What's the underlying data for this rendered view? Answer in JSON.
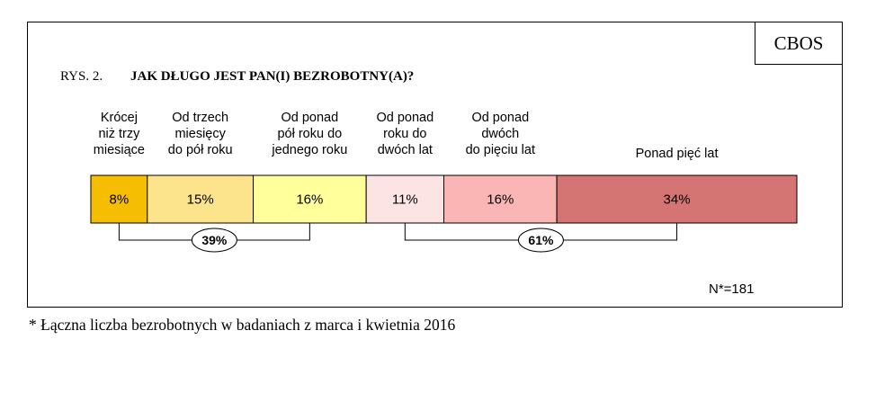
{
  "logo": "CBOS",
  "figure": {
    "label": "RYS. 2.",
    "title": "JAK DŁUGO JEST PAN(I) BEZROBOTNY(A)?"
  },
  "chart_data": {
    "type": "bar",
    "orientation": "horizontal-stacked-100",
    "title": "JAK DŁUGO JEST PAN(I) BEZROBOTNY(A)?",
    "series": [
      {
        "name": "Krócej niż trzy miesiące",
        "label_lines": [
          "Krócej",
          "niż trzy",
          "miesiące"
        ],
        "value": 8,
        "value_label": "8%",
        "color": "#f5be00"
      },
      {
        "name": "Od trzech miesięcy do pół roku",
        "label_lines": [
          "Od trzech",
          "miesięcy",
          "do pół roku"
        ],
        "value": 15,
        "value_label": "15%",
        "color": "#fce48c"
      },
      {
        "name": "Od ponad pół roku do jednego roku",
        "label_lines": [
          "Od ponad",
          "pół roku do",
          "jednego roku"
        ],
        "value": 16,
        "value_label": "16%",
        "color": "#ffff9c"
      },
      {
        "name": "Od ponad roku do dwóch lat",
        "label_lines": [
          "Od ponad",
          "roku do",
          "dwóch lat"
        ],
        "value": 11,
        "value_label": "11%",
        "color": "#fde4e4"
      },
      {
        "name": "Od ponad dwóch do pięciu lat",
        "label_lines": [
          "Od ponad",
          "dwóch",
          "do pięciu lat"
        ],
        "value": 16,
        "value_label": "16%",
        "color": "#fab5b5"
      },
      {
        "name": "Ponad pięć lat",
        "label_lines": [
          "Ponad pięć lat"
        ],
        "value": 34,
        "value_label": "34%",
        "color": "#d47573"
      }
    ],
    "groups": [
      {
        "label": "39%",
        "from_segment": 0,
        "to_segment": 2
      },
      {
        "label": "61%",
        "from_segment": 3,
        "to_segment": 5
      }
    ],
    "note": "N*=181"
  },
  "footnote": "* Łączna liczba bezrobotnych w badaniach z marca i kwietnia 2016"
}
